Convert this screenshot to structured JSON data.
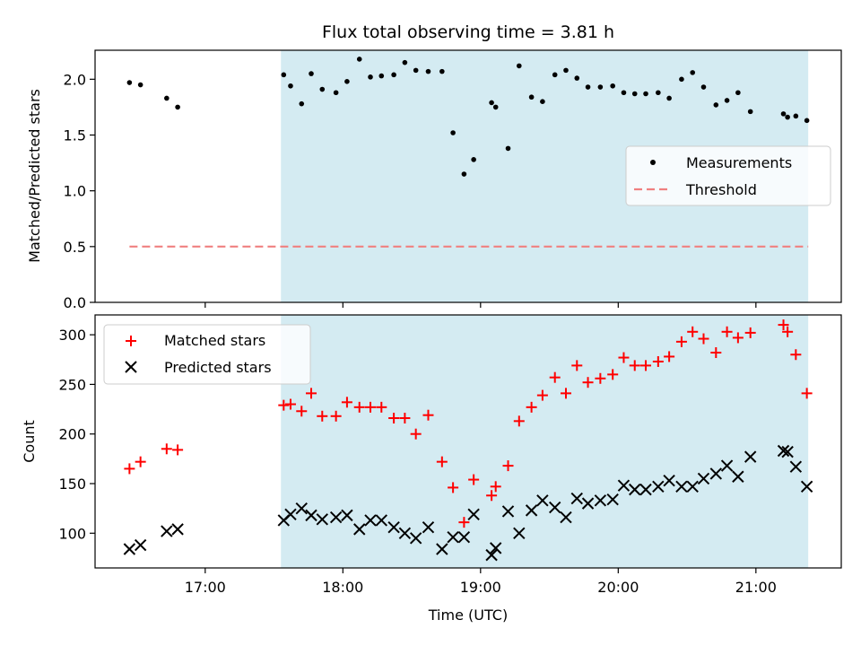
{
  "chart_data": [
    {
      "type": "scatter",
      "title": "Flux total observing time = 3.81 h",
      "ylabel": "Matched/Predicted stars",
      "ylim": [
        0,
        2.26
      ],
      "yticks": [
        "0.0",
        "0.5",
        "1.0",
        "1.5",
        "2.0"
      ],
      "ytick_values": [
        0,
        0.5,
        1.0,
        1.5,
        2.0
      ],
      "shaded_span": {
        "start_hour": 17.55,
        "end_hour": 21.38,
        "color": "#d4ebf2"
      },
      "legend_position": "center-right",
      "series": [
        {
          "name": "Measurements",
          "marker": "dot",
          "color": "#000000",
          "x": [
            16.45,
            16.53,
            16.72,
            16.8,
            17.57,
            17.62,
            17.7,
            17.77,
            17.85,
            17.95,
            18.03,
            18.12,
            18.2,
            18.28,
            18.37,
            18.45,
            18.53,
            18.62,
            18.72,
            18.8,
            18.88,
            18.95,
            19.08,
            19.11,
            19.2,
            19.28,
            19.37,
            19.45,
            19.54,
            19.62,
            19.7,
            19.78,
            19.87,
            19.96,
            20.04,
            20.12,
            20.2,
            20.29,
            20.37,
            20.46,
            20.54,
            20.62,
            20.71,
            20.79,
            20.87,
            20.96,
            21.2,
            21.23,
            21.29,
            21.37
          ],
          "y": [
            1.97,
            1.95,
            1.83,
            1.75,
            2.04,
            1.94,
            1.78,
            2.05,
            1.91,
            1.88,
            1.98,
            2.18,
            2.02,
            2.03,
            2.04,
            2.15,
            2.08,
            2.07,
            2.07,
            1.52,
            1.15,
            1.28,
            1.79,
            1.75,
            1.38,
            2.12,
            1.84,
            1.8,
            2.04,
            2.08,
            2.01,
            1.93,
            1.93,
            1.94,
            1.88,
            1.87,
            1.87,
            1.88,
            1.83,
            2.0,
            2.06,
            1.93,
            1.77,
            1.81,
            1.88,
            1.71,
            1.69,
            1.66,
            1.67,
            1.63
          ]
        },
        {
          "name": "Threshold",
          "marker": "dashed-line",
          "color": "#f08080",
          "x": [
            16.45,
            21.38
          ],
          "y": [
            0.5,
            0.5
          ]
        }
      ]
    },
    {
      "type": "scatter",
      "xlabel": "Time (UTC)",
      "ylabel": "Count",
      "ylim": [
        65,
        320
      ],
      "yticks": [
        "100",
        "150",
        "200",
        "250",
        "300"
      ],
      "ytick_values": [
        100,
        150,
        200,
        250,
        300
      ],
      "xlim_hours": [
        16.2,
        21.62
      ],
      "xticks": [
        "17:00",
        "18:00",
        "19:00",
        "20:00",
        "21:00"
      ],
      "xtick_values": [
        17,
        18,
        19,
        20,
        21
      ],
      "legend_position": "top-left",
      "series": [
        {
          "name": "Matched stars",
          "marker": "plus",
          "color": "#ff0000",
          "x": [
            16.45,
            16.53,
            16.72,
            16.8,
            17.57,
            17.62,
            17.7,
            17.77,
            17.85,
            17.95,
            18.03,
            18.12,
            18.2,
            18.28,
            18.37,
            18.45,
            18.53,
            18.62,
            18.72,
            18.8,
            18.88,
            18.95,
            19.08,
            19.11,
            19.2,
            19.28,
            19.37,
            19.45,
            19.54,
            19.62,
            19.7,
            19.78,
            19.87,
            19.96,
            20.04,
            20.12,
            20.2,
            20.29,
            20.37,
            20.46,
            20.54,
            20.62,
            20.71,
            20.79,
            20.87,
            20.96,
            21.2,
            21.23,
            21.29,
            21.37
          ],
          "y": [
            165,
            172,
            185,
            184,
            229,
            230,
            223,
            241,
            218,
            218,
            232,
            227,
            227,
            227,
            216,
            216,
            200,
            219,
            172,
            146,
            111,
            154,
            138,
            147,
            168,
            213,
            227,
            239,
            257,
            241,
            269,
            252,
            256,
            260,
            277,
            269,
            269,
            273,
            278,
            293,
            303,
            296,
            282,
            303,
            297,
            302,
            310,
            303,
            280,
            241
          ]
        },
        {
          "name": "Predicted stars",
          "marker": "x",
          "color": "#000000",
          "x": [
            16.45,
            16.53,
            16.72,
            16.8,
            17.57,
            17.62,
            17.7,
            17.77,
            17.85,
            17.95,
            18.03,
            18.12,
            18.2,
            18.28,
            18.37,
            18.45,
            18.53,
            18.62,
            18.72,
            18.8,
            18.88,
            18.95,
            19.08,
            19.11,
            19.2,
            19.28,
            19.37,
            19.45,
            19.54,
            19.62,
            19.7,
            19.78,
            19.87,
            19.96,
            20.04,
            20.12,
            20.2,
            20.29,
            20.37,
            20.46,
            20.54,
            20.62,
            20.71,
            20.79,
            20.87,
            20.96,
            21.2,
            21.23,
            21.29,
            21.37
          ],
          "y": [
            84,
            88,
            102,
            104,
            113,
            119,
            125,
            118,
            114,
            116,
            118,
            104,
            113,
            113,
            106,
            100,
            95,
            106,
            84,
            96,
            96,
            119,
            78,
            85,
            122,
            100,
            123,
            133,
            126,
            116,
            135,
            130,
            133,
            134,
            148,
            144,
            144,
            147,
            153,
            147,
            147,
            155,
            160,
            168,
            157,
            177,
            183,
            182,
            167,
            147
          ]
        }
      ]
    }
  ]
}
